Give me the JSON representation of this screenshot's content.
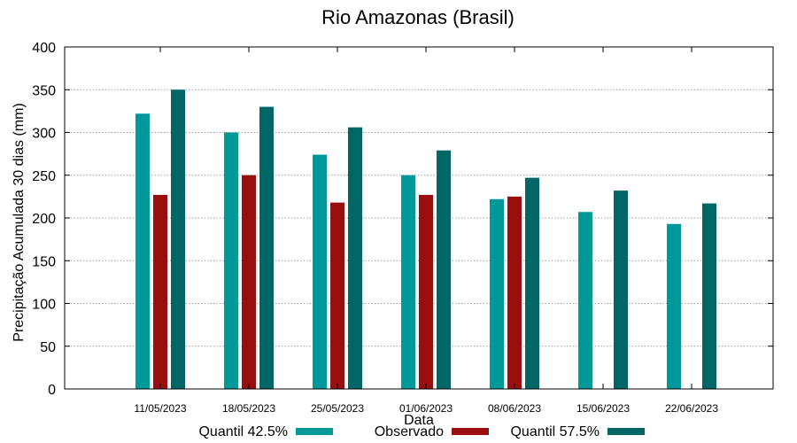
{
  "chart_data": {
    "type": "bar",
    "title": "Rio Amazonas (Brasil)",
    "xlabel": "Data",
    "ylabel": "Precipitação Acumulada 30 dias (mm)",
    "ylim": [
      0,
      400
    ],
    "yticks": [
      "0",
      "50",
      "100",
      "150",
      "200",
      "250",
      "300",
      "350",
      "400"
    ],
    "grid": true,
    "legend_position": "bottom",
    "categories": [
      "11/05/2023",
      "18/05/2023",
      "25/05/2023",
      "01/06/2023",
      "08/06/2023",
      "15/06/2023",
      "22/06/2023"
    ],
    "series": [
      {
        "name": "Quantil 42.5%",
        "color": "#009999",
        "values": [
          322,
          300,
          274,
          250,
          222,
          207,
          193
        ]
      },
      {
        "name": "Observado",
        "color": "#990f0f",
        "values": [
          227,
          250,
          218,
          227,
          225,
          null,
          null
        ]
      },
      {
        "name": "Quantil 57.5%",
        "color": "#006666",
        "values": [
          350,
          330,
          306,
          279,
          247,
          232,
          217
        ]
      }
    ]
  }
}
